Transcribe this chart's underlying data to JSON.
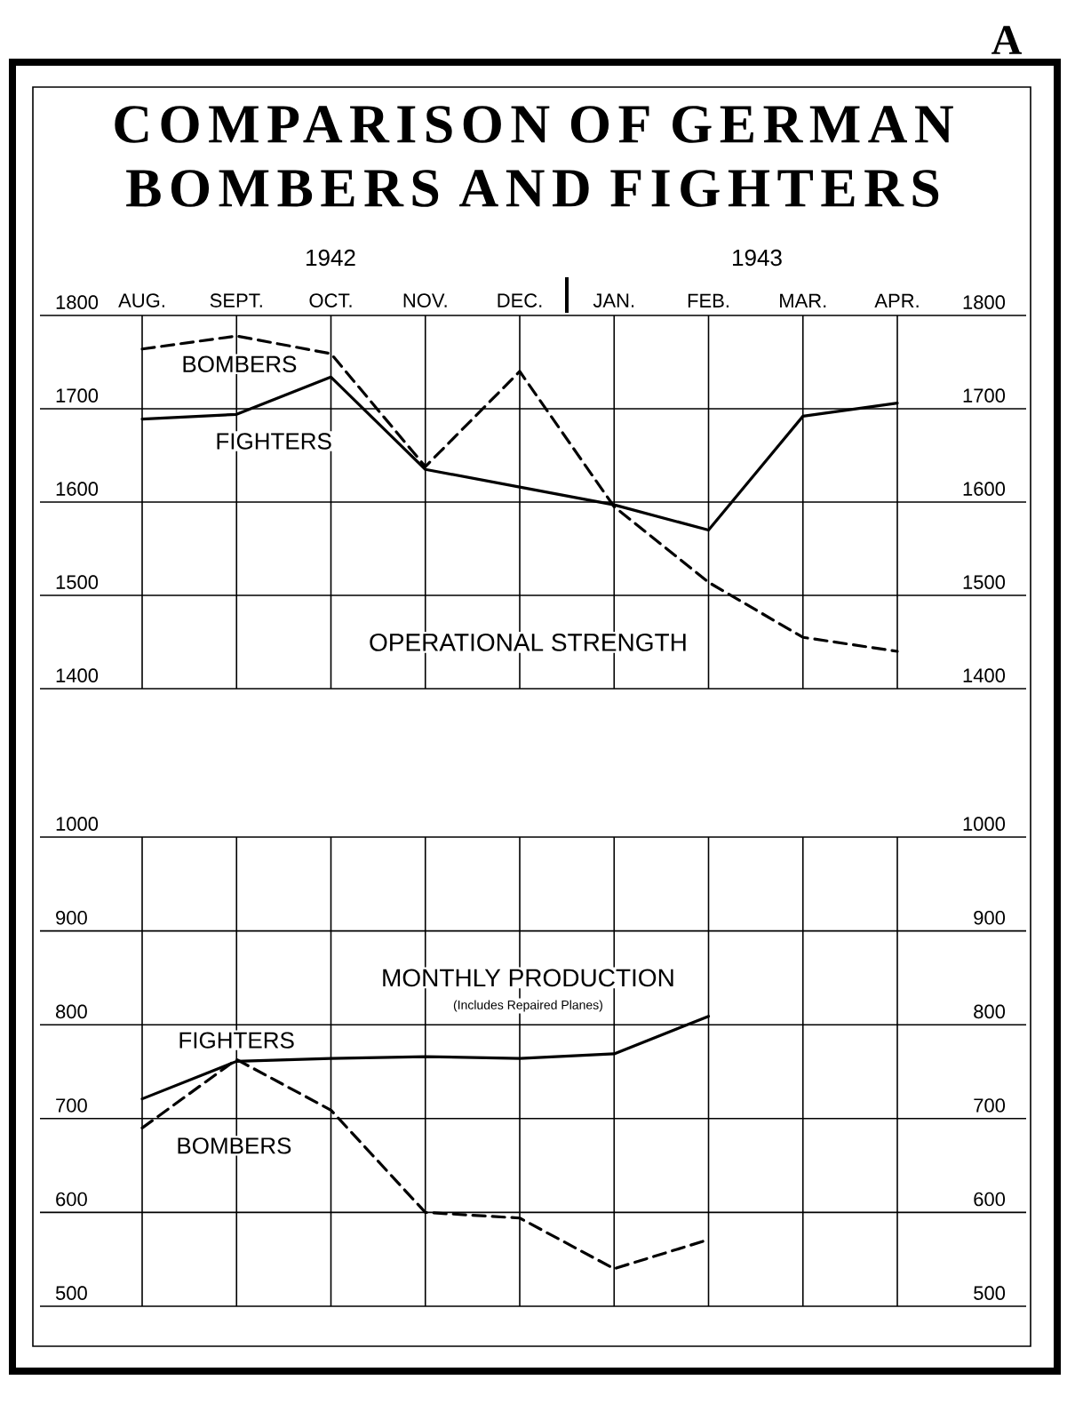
{
  "chart_data": [
    {
      "type": "line",
      "title": "COMPARISON OF GERMAN BOMBERS AND FIGHTERS",
      "subtitle": "OPERATIONAL STRENGTH",
      "categories": [
        "AUG.",
        "SEPT.",
        "OCT.",
        "NOV.",
        "DEC.",
        "JAN.",
        "FEB.",
        "MAR.",
        "APR."
      ],
      "series": [
        {
          "name": "BOMBERS",
          "color": "#000000",
          "line_style": "dashed",
          "values": [
            1764,
            1778,
            1759,
            1638,
            1740,
            1595,
            1514,
            1455,
            1440
          ]
        },
        {
          "name": "FIGHTERS",
          "color": "#000000",
          "line_style": "solid",
          "values": [
            1689,
            1694,
            1734,
            1635,
            1616,
            1597,
            1570,
            1692,
            1706
          ]
        }
      ],
      "ylim": [
        1400,
        1800
      ],
      "yticks": [
        1400,
        1500,
        1600,
        1700,
        1800
      ],
      "y2lim": [
        1400,
        1800
      ],
      "y2ticks": [
        1400,
        1500,
        1600,
        1700,
        1800
      ],
      "grid": true,
      "annotations": [
        "1942",
        "1943",
        "A"
      ]
    },
    {
      "type": "line",
      "title": "MONTHLY PRODUCTION",
      "subtitle": "(Includes Repaired Planes)",
      "categories": [
        null,
        null,
        null,
        null,
        null,
        null,
        null,
        null,
        null
      ],
      "series": [
        {
          "name": "FIGHTERS",
          "color": "#000000",
          "line_style": "solid",
          "values": [
            721,
            761,
            764,
            766,
            764,
            769,
            809,
            null,
            null
          ]
        },
        {
          "name": "BOMBERS",
          "color": "#000000",
          "line_style": "dashed",
          "values": [
            690,
            763,
            709,
            600,
            594,
            540,
            571,
            null,
            null
          ]
        }
      ],
      "ylim": [
        500,
        1000
      ],
      "yticks": [
        500,
        600,
        700,
        800,
        900,
        1000
      ],
      "y2lim": [
        500,
        1000
      ],
      "y2ticks": [
        500,
        600,
        700,
        800,
        900,
        1000
      ],
      "grid": true,
      "tick_labels": "y"
    }
  ]
}
